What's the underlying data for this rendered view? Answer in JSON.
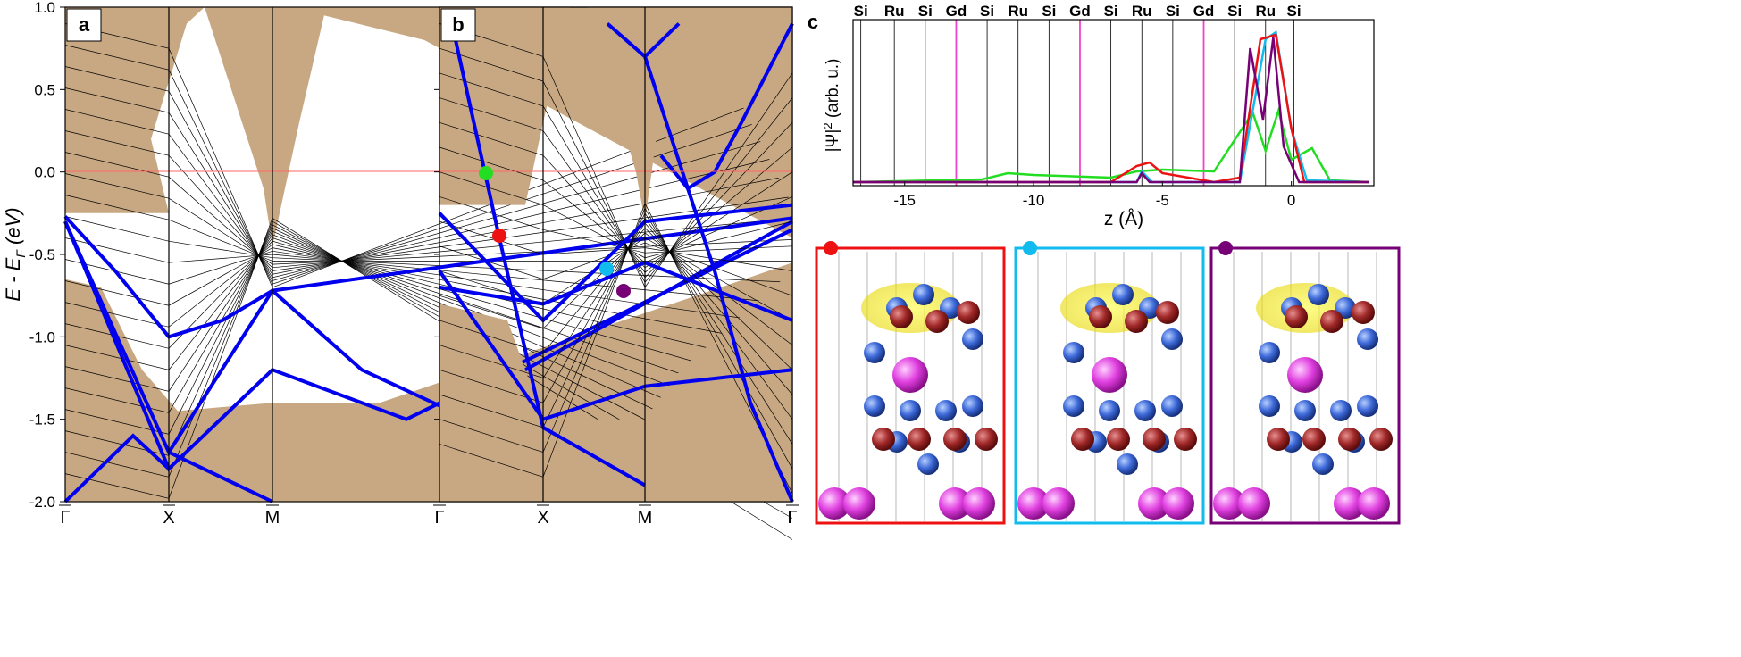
{
  "panels": {
    "a": {
      "label": "a"
    },
    "b": {
      "label": "b"
    },
    "c": {
      "label": "c"
    }
  },
  "ylabel": "E - E",
  "ylabel_sub": "F",
  "ylabel_unit": " (eV)",
  "band_axis": {
    "ylim": [
      -2.0,
      1.0
    ],
    "yticks": [
      "1.0",
      "0.5",
      "0.0",
      "-0.5",
      "-1.0",
      "-1.5",
      "-2.0"
    ],
    "kpoints": [
      "Γ",
      "X",
      "M",
      "Γ"
    ]
  },
  "wf_axis": {
    "ylabel": "|Ψ|",
    "ylabel_sup": "2",
    "ylabel_unit": " (arb. u.)",
    "xlabel": "z (Å)",
    "xticks": [
      "-15",
      "-10",
      "-5",
      "0"
    ],
    "atom_labels": [
      "Si",
      "Ru",
      "Si",
      "Gd",
      "Si",
      "Ru",
      "Si",
      "Gd",
      "Si",
      "Ru",
      "Si",
      "Gd",
      "Si",
      "Ru",
      "Si"
    ]
  },
  "colors": {
    "bulk": "#c8a882",
    "band": "#0000ee",
    "line": "#000000",
    "fermi": "#ff6666",
    "red": "#ee1111",
    "cyan": "#11bbee",
    "purple": "#770077",
    "green": "#22dd22",
    "gd": "#ee44cc"
  },
  "state_markers": [
    "red",
    "cyan",
    "purple"
  ]
}
